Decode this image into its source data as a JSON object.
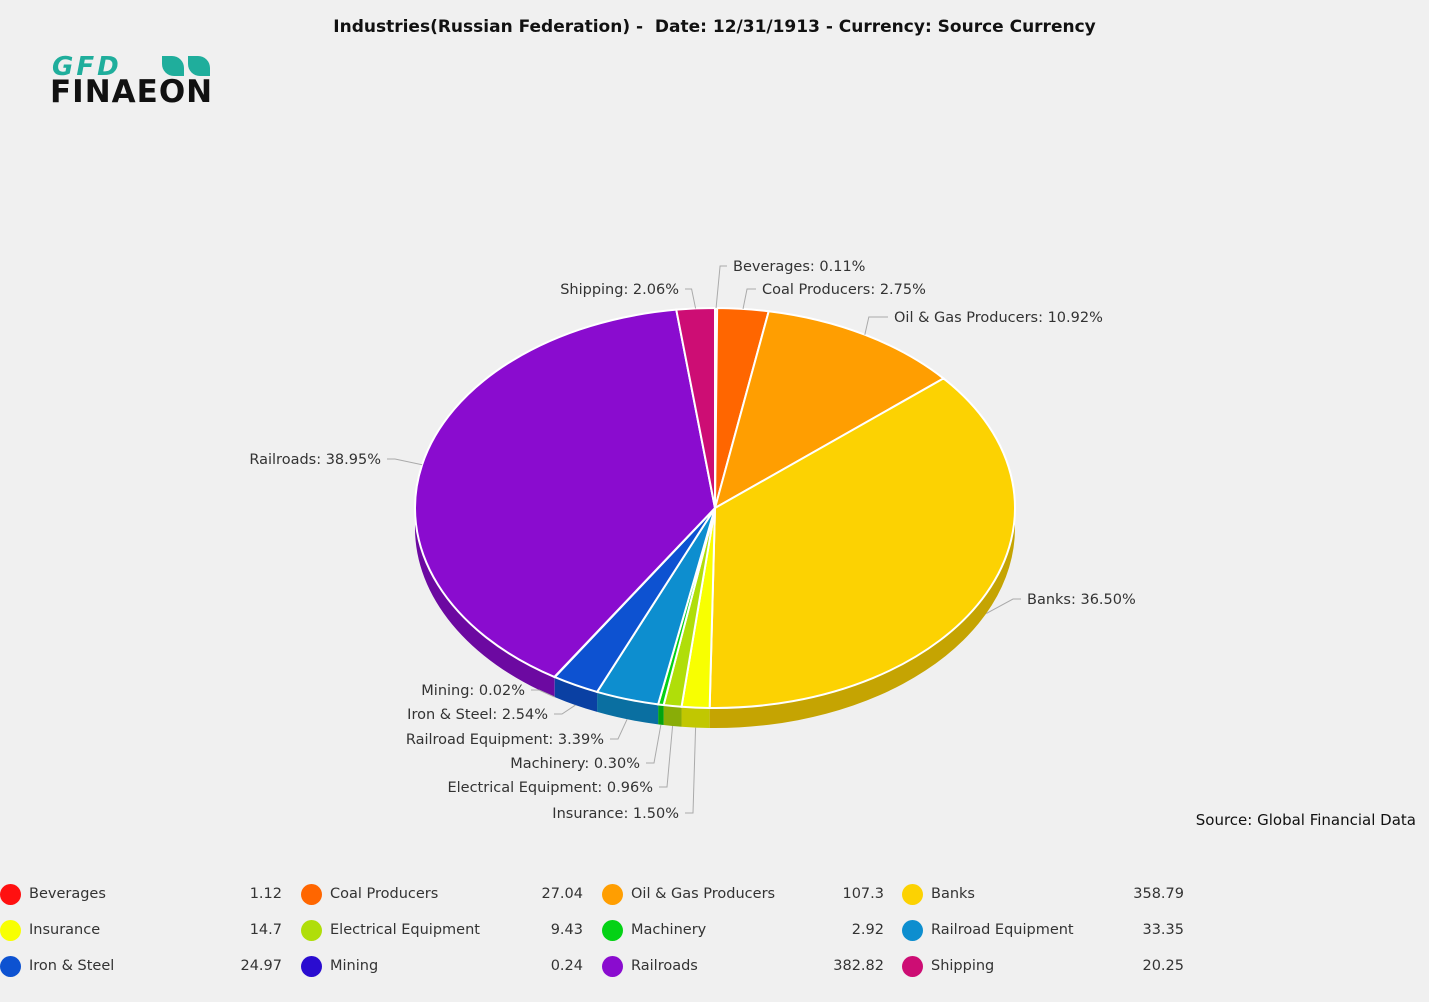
{
  "title": "Industries(Russian Federation) -  Date: 12/31/1913 - Currency: Source Currency",
  "logo": {
    "line1": "GFD",
    "line2": "FINAEON"
  },
  "source_note": "Source: Global Financial Data",
  "chart_data": {
    "type": "pie",
    "title": "Industries(Russian Federation) -  Date: 12/31/1913 - Currency: Source Currency",
    "slices": [
      {
        "name": "Beverages",
        "value": 1.12,
        "percent": "0.11%",
        "color": "#ff1010"
      },
      {
        "name": "Coal Producers",
        "value": 27.04,
        "percent": "2.75%",
        "color": "#ff6600"
      },
      {
        "name": "Oil & Gas Producers",
        "value": 107.3,
        "percent": "10.92%",
        "color": "#ff9e01"
      },
      {
        "name": "Banks",
        "value": 358.79,
        "percent": "36.50%",
        "color": "#fcd202"
      },
      {
        "name": "Insurance",
        "value": 14.7,
        "percent": "1.50%",
        "color": "#f8ff01"
      },
      {
        "name": "Electrical Equipment",
        "value": 9.43,
        "percent": "0.96%",
        "color": "#b0de09"
      },
      {
        "name": "Machinery",
        "value": 2.92,
        "percent": "0.30%",
        "color": "#04d215"
      },
      {
        "name": "Railroad Equipment",
        "value": 33.35,
        "percent": "3.39%",
        "color": "#0d8ecf"
      },
      {
        "name": "Iron & Steel",
        "value": 24.97,
        "percent": "2.54%",
        "color": "#0d52d1"
      },
      {
        "name": "Mining",
        "value": 0.24,
        "percent": "0.02%",
        "color": "#2a0cd0"
      },
      {
        "name": "Railroads",
        "value": 382.82,
        "percent": "38.95%",
        "color": "#8a0ccf"
      },
      {
        "name": "Shipping",
        "value": 20.25,
        "percent": "2.06%",
        "color": "#cd0d74"
      }
    ],
    "legend_position": "bottom"
  }
}
